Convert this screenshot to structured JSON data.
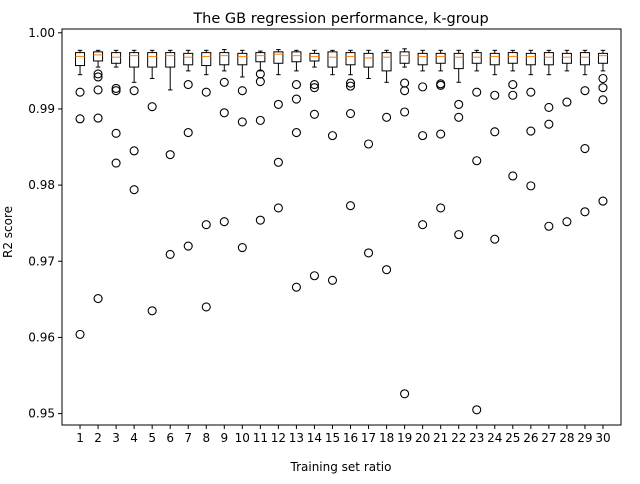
{
  "chart_data": {
    "type": "box",
    "title": "The GB regression performance, k-group",
    "xlabel": "Training set ratio",
    "ylabel": "R2 score",
    "ylim": [
      0.9485,
      1.0005
    ],
    "yticks": [
      0.95,
      0.96,
      0.97,
      0.98,
      0.99,
      1.0
    ],
    "ytick_labels": [
      "0.95",
      "0.96",
      "0.97",
      "0.98",
      "0.99",
      "1.00"
    ],
    "categories": [
      "1",
      "2",
      "3",
      "4",
      "5",
      "6",
      "7",
      "8",
      "9",
      "10",
      "11",
      "12",
      "13",
      "14",
      "15",
      "16",
      "17",
      "18",
      "19",
      "20",
      "21",
      "22",
      "23",
      "24",
      "25",
      "26",
      "27",
      "28",
      "29",
      "30"
    ],
    "colors": {
      "box": "#000000",
      "median": "#ff7f0e",
      "background": "#ffffff"
    },
    "boxes": [
      {
        "whislo": 0.9945,
        "q1": 0.9957,
        "med": 0.9969,
        "q3": 0.9974,
        "whishi": 0.9977,
        "fliers": [
          0.9922,
          0.9887,
          0.9604
        ]
      },
      {
        "whislo": 0.9955,
        "q1": 0.9963,
        "med": 0.9971,
        "q3": 0.9975,
        "whishi": 0.9977,
        "fliers": [
          0.9946,
          0.9942,
          0.9925,
          0.9888,
          0.9651
        ]
      },
      {
        "whislo": 0.9955,
        "q1": 0.996,
        "med": 0.9968,
        "q3": 0.9974,
        "whishi": 0.9977,
        "fliers": [
          0.9927,
          0.9924,
          0.9868,
          0.9829
        ]
      },
      {
        "whislo": 0.9935,
        "q1": 0.9955,
        "med": 0.997,
        "q3": 0.9974,
        "whishi": 0.9977,
        "fliers": [
          0.9924,
          0.9845,
          0.9794
        ]
      },
      {
        "whislo": 0.994,
        "q1": 0.9955,
        "med": 0.9969,
        "q3": 0.9974,
        "whishi": 0.9977,
        "fliers": [
          0.9903,
          0.9635
        ]
      },
      {
        "whislo": 0.9925,
        "q1": 0.9955,
        "med": 0.997,
        "q3": 0.9974,
        "whishi": 0.9977,
        "fliers": [
          0.984,
          0.9709
        ]
      },
      {
        "whislo": 0.995,
        "q1": 0.9958,
        "med": 0.9968,
        "q3": 0.9973,
        "whishi": 0.9977,
        "fliers": [
          0.9932,
          0.9869,
          0.972
        ]
      },
      {
        "whislo": 0.9945,
        "q1": 0.9957,
        "med": 0.9969,
        "q3": 0.9974,
        "whishi": 0.9977,
        "fliers": [
          0.9922,
          0.9748,
          0.964
        ]
      },
      {
        "whislo": 0.995,
        "q1": 0.9958,
        "med": 0.997,
        "q3": 0.9974,
        "whishi": 0.9978,
        "fliers": [
          0.9935,
          0.9895,
          0.9752
        ]
      },
      {
        "whislo": 0.9942,
        "q1": 0.9958,
        "med": 0.9969,
        "q3": 0.9973,
        "whishi": 0.9977,
        "fliers": [
          0.9924,
          0.9883,
          0.9718
        ]
      },
      {
        "whislo": 0.995,
        "q1": 0.9962,
        "med": 0.997,
        "q3": 0.9974,
        "whishi": 0.9976,
        "fliers": [
          0.9946,
          0.9936,
          0.9885,
          0.9754
        ]
      },
      {
        "whislo": 0.9945,
        "q1": 0.996,
        "med": 0.9972,
        "q3": 0.9975,
        "whishi": 0.9978,
        "fliers": [
          0.9906,
          0.983,
          0.977
        ]
      },
      {
        "whislo": 0.995,
        "q1": 0.9962,
        "med": 0.997,
        "q3": 0.9975,
        "whishi": 0.9977,
        "fliers": [
          0.9932,
          0.9913,
          0.9869,
          0.9666
        ]
      },
      {
        "whislo": 0.9955,
        "q1": 0.9963,
        "med": 0.9969,
        "q3": 0.9973,
        "whishi": 0.9977,
        "fliers": [
          0.9932,
          0.9928,
          0.9893,
          0.9681
        ]
      },
      {
        "whislo": 0.9945,
        "q1": 0.9955,
        "med": 0.9968,
        "q3": 0.9975,
        "whishi": 0.9977,
        "fliers": [
          0.9865,
          0.9675
        ]
      },
      {
        "whislo": 0.9945,
        "q1": 0.9958,
        "med": 0.9969,
        "q3": 0.9974,
        "whishi": 0.9977,
        "fliers": [
          0.9934,
          0.993,
          0.9894,
          0.9773
        ]
      },
      {
        "whislo": 0.994,
        "q1": 0.9955,
        "med": 0.9967,
        "q3": 0.9973,
        "whishi": 0.9977,
        "fliers": [
          0.9854,
          0.9711
        ]
      },
      {
        "whislo": 0.9935,
        "q1": 0.995,
        "med": 0.9968,
        "q3": 0.9974,
        "whishi": 0.9977,
        "fliers": [
          0.9889,
          0.9689
        ]
      },
      {
        "whislo": 0.9955,
        "q1": 0.996,
        "med": 0.997,
        "q3": 0.9975,
        "whishi": 0.9979,
        "fliers": [
          0.9934,
          0.9924,
          0.9896,
          0.9526
        ]
      },
      {
        "whislo": 0.995,
        "q1": 0.9958,
        "med": 0.9969,
        "q3": 0.9973,
        "whishi": 0.9977,
        "fliers": [
          0.9929,
          0.9865,
          0.9748
        ]
      },
      {
        "whislo": 0.995,
        "q1": 0.996,
        "med": 0.9969,
        "q3": 0.9973,
        "whishi": 0.9977,
        "fliers": [
          0.9933,
          0.9931,
          0.9867,
          0.977
        ]
      },
      {
        "whislo": 0.9935,
        "q1": 0.9953,
        "med": 0.9968,
        "q3": 0.9973,
        "whishi": 0.9977,
        "fliers": [
          0.9906,
          0.9889,
          0.9735
        ]
      },
      {
        "whislo": 0.995,
        "q1": 0.996,
        "med": 0.9968,
        "q3": 0.9974,
        "whishi": 0.9977,
        "fliers": [
          0.9922,
          0.9832,
          0.9505
        ]
      },
      {
        "whislo": 0.9945,
        "q1": 0.9958,
        "med": 0.9969,
        "q3": 0.9973,
        "whishi": 0.9977,
        "fliers": [
          0.9918,
          0.987,
          0.9729
        ]
      },
      {
        "whislo": 0.995,
        "q1": 0.996,
        "med": 0.9969,
        "q3": 0.9974,
        "whishi": 0.9977,
        "fliers": [
          0.9932,
          0.9918,
          0.9812
        ]
      },
      {
        "whislo": 0.9945,
        "q1": 0.9958,
        "med": 0.9969,
        "q3": 0.9973,
        "whishi": 0.9977,
        "fliers": [
          0.9922,
          0.9871,
          0.9799
        ]
      },
      {
        "whislo": 0.9945,
        "q1": 0.9958,
        "med": 0.9968,
        "q3": 0.9974,
        "whishi": 0.9977,
        "fliers": [
          0.9902,
          0.988,
          0.9746
        ]
      },
      {
        "whislo": 0.995,
        "q1": 0.996,
        "med": 0.9968,
        "q3": 0.9973,
        "whishi": 0.9977,
        "fliers": [
          0.9909,
          0.9752
        ]
      },
      {
        "whislo": 0.9945,
        "q1": 0.9958,
        "med": 0.9968,
        "q3": 0.9974,
        "whishi": 0.9977,
        "fliers": [
          0.9924,
          0.9848,
          0.9765
        ]
      },
      {
        "whislo": 0.995,
        "q1": 0.996,
        "med": 0.997,
        "q3": 0.9973,
        "whishi": 0.9977,
        "fliers": [
          0.994,
          0.9928,
          0.9912,
          0.9779
        ]
      }
    ]
  }
}
